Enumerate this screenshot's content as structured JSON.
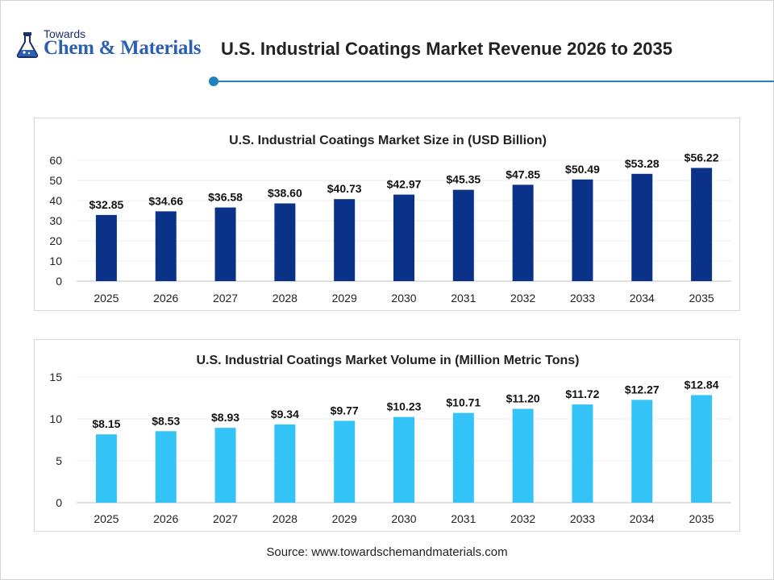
{
  "header": {
    "logo_small": "Towards",
    "logo_main": "Chem & Materials",
    "title": "U.S. Industrial Coatings Market Revenue 2026 to 2035"
  },
  "colors": {
    "accent": "#1f82c0",
    "revenue_bar": "#0a3288",
    "volume_bar": "#33c3f7"
  },
  "chart_data": [
    {
      "type": "bar",
      "title": "U.S. Industrial Coatings Market Size in (USD Billion)",
      "categories": [
        "2025",
        "2026",
        "2027",
        "2028",
        "2029",
        "2030",
        "2031",
        "2032",
        "2033",
        "2034",
        "2035"
      ],
      "values": [
        32.85,
        34.66,
        36.58,
        38.6,
        40.73,
        42.97,
        45.35,
        47.85,
        50.49,
        53.28,
        56.22
      ],
      "value_labels": [
        "$32.85",
        "$34.66",
        "$36.58",
        "$38.60",
        "$40.73",
        "$42.97",
        "$45.35",
        "$47.85",
        "$50.49",
        "$53.28",
        "$56.22"
      ],
      "ylim": [
        0,
        60
      ],
      "yticks": [
        0,
        10,
        20,
        30,
        40,
        50,
        60
      ],
      "grid": true,
      "color": "#0a3288"
    },
    {
      "type": "bar",
      "title": "U.S. Industrial Coatings Market Volume in (Million Metric Tons)",
      "categories": [
        "2025",
        "2026",
        "2027",
        "2028",
        "2029",
        "2030",
        "2031",
        "2032",
        "2033",
        "2034",
        "2035"
      ],
      "values": [
        8.15,
        8.53,
        8.93,
        9.34,
        9.77,
        10.23,
        10.71,
        11.2,
        11.72,
        12.27,
        12.84
      ],
      "value_labels": [
        "$8.15",
        "$8.53",
        "$8.93",
        "$9.34",
        "$9.77",
        "$10.23",
        "$10.71",
        "$11.20",
        "$11.72",
        "$12.27",
        "$12.84"
      ],
      "ylim": [
        0,
        15
      ],
      "yticks": [
        0,
        5,
        10,
        15
      ],
      "grid": true,
      "color": "#33c3f7"
    }
  ],
  "footer": {
    "source": "Source: www.towardschemandmaterials.com"
  }
}
